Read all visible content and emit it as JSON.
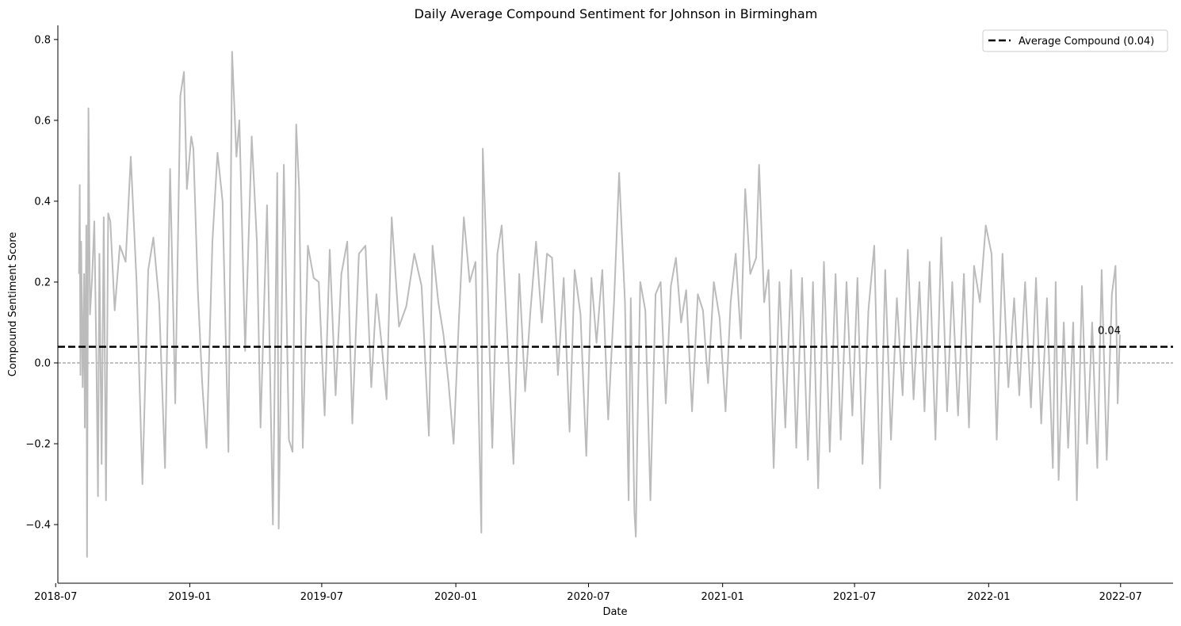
{
  "chart_data": {
    "type": "line",
    "title": "Daily Average Compound Sentiment for Johnson in Birmingham",
    "xlabel": "Date",
    "ylabel": "Compound Sentiment Score",
    "x_range": [
      "2018-08-02",
      "2022-06-30"
    ],
    "xlim": [
      "2018-07-04",
      "2022-09-11"
    ],
    "ylim": [
      -0.545,
      0.835
    ],
    "x_ticks": [
      "2018-07",
      "2019-01",
      "2019-07",
      "2020-01",
      "2020-07",
      "2021-01",
      "2021-07",
      "2022-01",
      "2022-07"
    ],
    "y_ticks": [
      -0.4,
      -0.2,
      0.0,
      0.2,
      0.4,
      0.6,
      0.8
    ],
    "y_tick_labels": [
      "−0.4",
      "−0.2",
      "0.0",
      "0.2",
      "0.4",
      "0.6",
      "0.8"
    ],
    "series": [
      {
        "color": "#bbbbbb",
        "points": [
          [
            "2018-08-02",
            0.22
          ],
          [
            "2018-08-03",
            0.44
          ],
          [
            "2018-08-04",
            -0.03
          ],
          [
            "2018-08-05",
            0.3
          ],
          [
            "2018-08-07",
            -0.06
          ],
          [
            "2018-08-09",
            0.22
          ],
          [
            "2018-08-10",
            -0.16
          ],
          [
            "2018-08-12",
            0.34
          ],
          [
            "2018-08-13",
            -0.48
          ],
          [
            "2018-08-15",
            0.63
          ],
          [
            "2018-08-17",
            0.12
          ],
          [
            "2018-08-20",
            0.21
          ],
          [
            "2018-08-23",
            0.35
          ],
          [
            "2018-08-26",
            0.0
          ],
          [
            "2018-08-28",
            -0.33
          ],
          [
            "2018-08-30",
            0.27
          ],
          [
            "2018-09-02",
            -0.25
          ],
          [
            "2018-09-05",
            0.36
          ],
          [
            "2018-09-08",
            -0.34
          ],
          [
            "2018-09-11",
            0.37
          ],
          [
            "2018-09-14",
            0.35
          ],
          [
            "2018-09-20",
            0.13
          ],
          [
            "2018-09-27",
            0.29
          ],
          [
            "2018-10-05",
            0.25
          ],
          [
            "2018-10-12",
            0.51
          ],
          [
            "2018-10-20",
            0.2
          ],
          [
            "2018-10-28",
            -0.3
          ],
          [
            "2018-11-05",
            0.23
          ],
          [
            "2018-11-12",
            0.31
          ],
          [
            "2018-11-20",
            0.15
          ],
          [
            "2018-11-28",
            -0.26
          ],
          [
            "2018-12-05",
            0.48
          ],
          [
            "2018-12-12",
            -0.1
          ],
          [
            "2018-12-19",
            0.66
          ],
          [
            "2018-12-24",
            0.72
          ],
          [
            "2018-12-28",
            0.43
          ],
          [
            "2019-01-03",
            0.56
          ],
          [
            "2019-01-06",
            0.53
          ],
          [
            "2019-01-12",
            0.18
          ],
          [
            "2019-01-18",
            -0.05
          ],
          [
            "2019-01-24",
            -0.21
          ],
          [
            "2019-02-01",
            0.3
          ],
          [
            "2019-02-08",
            0.52
          ],
          [
            "2019-02-15",
            0.4
          ],
          [
            "2019-02-23",
            -0.22
          ],
          [
            "2019-02-28",
            0.77
          ],
          [
            "2019-03-06",
            0.51
          ],
          [
            "2019-03-10",
            0.6
          ],
          [
            "2019-03-18",
            0.03
          ],
          [
            "2019-03-27",
            0.56
          ],
          [
            "2019-04-03",
            0.3
          ],
          [
            "2019-04-08",
            -0.16
          ],
          [
            "2019-04-17",
            0.39
          ],
          [
            "2019-04-25",
            -0.4
          ],
          [
            "2019-05-01",
            0.47
          ],
          [
            "2019-05-03",
            -0.41
          ],
          [
            "2019-05-10",
            0.49
          ],
          [
            "2019-05-17",
            -0.19
          ],
          [
            "2019-05-22",
            -0.22
          ],
          [
            "2019-05-27",
            0.59
          ],
          [
            "2019-05-31",
            0.43
          ],
          [
            "2019-06-05",
            -0.21
          ],
          [
            "2019-06-12",
            0.29
          ],
          [
            "2019-06-20",
            0.21
          ],
          [
            "2019-06-27",
            0.2
          ],
          [
            "2019-07-05",
            -0.13
          ],
          [
            "2019-07-12",
            0.28
          ],
          [
            "2019-07-20",
            -0.08
          ],
          [
            "2019-07-28",
            0.22
          ],
          [
            "2019-08-05",
            0.3
          ],
          [
            "2019-08-12",
            -0.15
          ],
          [
            "2019-08-21",
            0.27
          ],
          [
            "2019-08-30",
            0.29
          ],
          [
            "2019-09-07",
            -0.06
          ],
          [
            "2019-09-14",
            0.17
          ],
          [
            "2019-09-21",
            0.05
          ],
          [
            "2019-09-28",
            -0.09
          ],
          [
            "2019-10-05",
            0.36
          ],
          [
            "2019-10-15",
            0.09
          ],
          [
            "2019-10-25",
            0.14
          ],
          [
            "2019-11-05",
            0.27
          ],
          [
            "2019-11-15",
            0.19
          ],
          [
            "2019-11-25",
            -0.18
          ],
          [
            "2019-11-30",
            0.29
          ],
          [
            "2019-12-08",
            0.15
          ],
          [
            "2019-12-15",
            0.07
          ],
          [
            "2019-12-22",
            -0.05
          ],
          [
            "2019-12-29",
            -0.2
          ],
          [
            "2020-01-05",
            0.1
          ],
          [
            "2020-01-12",
            0.36
          ],
          [
            "2020-01-20",
            0.2
          ],
          [
            "2020-01-28",
            0.25
          ],
          [
            "2020-02-05",
            -0.42
          ],
          [
            "2020-02-07",
            0.53
          ],
          [
            "2020-02-14",
            0.17
          ],
          [
            "2020-02-20",
            -0.21
          ],
          [
            "2020-02-27",
            0.27
          ],
          [
            "2020-03-04",
            0.34
          ],
          [
            "2020-03-12",
            0.05
          ],
          [
            "2020-03-20",
            -0.25
          ],
          [
            "2020-03-28",
            0.22
          ],
          [
            "2020-04-05",
            -0.07
          ],
          [
            "2020-04-12",
            0.12
          ],
          [
            "2020-04-20",
            0.3
          ],
          [
            "2020-04-28",
            0.1
          ],
          [
            "2020-05-05",
            0.27
          ],
          [
            "2020-05-12",
            0.26
          ],
          [
            "2020-05-20",
            -0.03
          ],
          [
            "2020-05-28",
            0.21
          ],
          [
            "2020-06-05",
            -0.17
          ],
          [
            "2020-06-12",
            0.23
          ],
          [
            "2020-06-20",
            0.12
          ],
          [
            "2020-06-28",
            -0.23
          ],
          [
            "2020-07-05",
            0.21
          ],
          [
            "2020-07-12",
            0.05
          ],
          [
            "2020-07-20",
            0.23
          ],
          [
            "2020-07-28",
            -0.14
          ],
          [
            "2020-08-05",
            0.15
          ],
          [
            "2020-08-12",
            0.47
          ],
          [
            "2020-08-20",
            0.15
          ],
          [
            "2020-08-25",
            -0.34
          ],
          [
            "2020-08-28",
            0.16
          ],
          [
            "2020-09-02",
            -0.37
          ],
          [
            "2020-09-04",
            -0.43
          ],
          [
            "2020-09-06",
            -0.18
          ],
          [
            "2020-09-10",
            0.2
          ],
          [
            "2020-09-17",
            0.13
          ],
          [
            "2020-09-24",
            -0.34
          ],
          [
            "2020-10-01",
            0.17
          ],
          [
            "2020-10-08",
            0.2
          ],
          [
            "2020-10-15",
            -0.1
          ],
          [
            "2020-10-22",
            0.19
          ],
          [
            "2020-10-29",
            0.26
          ],
          [
            "2020-11-05",
            0.1
          ],
          [
            "2020-11-12",
            0.18
          ],
          [
            "2020-11-20",
            -0.12
          ],
          [
            "2020-11-28",
            0.17
          ],
          [
            "2020-12-05",
            0.13
          ],
          [
            "2020-12-12",
            -0.05
          ],
          [
            "2020-12-20",
            0.2
          ],
          [
            "2020-12-28",
            0.11
          ],
          [
            "2021-01-05",
            -0.12
          ],
          [
            "2021-01-12",
            0.15
          ],
          [
            "2021-01-19",
            0.27
          ],
          [
            "2021-01-26",
            0.06
          ],
          [
            "2021-02-01",
            0.43
          ],
          [
            "2021-02-08",
            0.22
          ],
          [
            "2021-02-16",
            0.26
          ],
          [
            "2021-02-20",
            0.49
          ],
          [
            "2021-02-27",
            0.15
          ],
          [
            "2021-03-05",
            0.23
          ],
          [
            "2021-03-12",
            -0.26
          ],
          [
            "2021-03-20",
            0.2
          ],
          [
            "2021-03-28",
            -0.16
          ],
          [
            "2021-04-05",
            0.23
          ],
          [
            "2021-04-12",
            -0.21
          ],
          [
            "2021-04-20",
            0.21
          ],
          [
            "2021-04-28",
            -0.24
          ],
          [
            "2021-05-05",
            0.2
          ],
          [
            "2021-05-12",
            -0.31
          ],
          [
            "2021-05-20",
            0.25
          ],
          [
            "2021-05-28",
            -0.22
          ],
          [
            "2021-06-05",
            0.22
          ],
          [
            "2021-06-12",
            -0.19
          ],
          [
            "2021-06-20",
            0.2
          ],
          [
            "2021-06-28",
            -0.13
          ],
          [
            "2021-07-05",
            0.21
          ],
          [
            "2021-07-12",
            -0.25
          ],
          [
            "2021-07-20",
            0.13
          ],
          [
            "2021-07-28",
            0.29
          ],
          [
            "2021-08-05",
            -0.31
          ],
          [
            "2021-08-12",
            0.23
          ],
          [
            "2021-08-20",
            -0.19
          ],
          [
            "2021-08-28",
            0.16
          ],
          [
            "2021-09-05",
            -0.08
          ],
          [
            "2021-09-12",
            0.28
          ],
          [
            "2021-09-20",
            -0.09
          ],
          [
            "2021-09-28",
            0.2
          ],
          [
            "2021-10-05",
            -0.12
          ],
          [
            "2021-10-12",
            0.25
          ],
          [
            "2021-10-20",
            -0.19
          ],
          [
            "2021-10-28",
            0.31
          ],
          [
            "2021-11-05",
            -0.12
          ],
          [
            "2021-11-12",
            0.2
          ],
          [
            "2021-11-20",
            -0.13
          ],
          [
            "2021-11-28",
            0.22
          ],
          [
            "2021-12-05",
            -0.16
          ],
          [
            "2021-12-12",
            0.24
          ],
          [
            "2021-12-20",
            0.15
          ],
          [
            "2021-12-28",
            0.34
          ],
          [
            "2022-01-05",
            0.27
          ],
          [
            "2022-01-12",
            -0.19
          ],
          [
            "2022-01-20",
            0.27
          ],
          [
            "2022-01-28",
            -0.06
          ],
          [
            "2022-02-05",
            0.16
          ],
          [
            "2022-02-12",
            -0.08
          ],
          [
            "2022-02-20",
            0.2
          ],
          [
            "2022-02-28",
            -0.11
          ],
          [
            "2022-03-07",
            0.21
          ],
          [
            "2022-03-14",
            -0.15
          ],
          [
            "2022-03-22",
            0.16
          ],
          [
            "2022-03-30",
            -0.26
          ],
          [
            "2022-04-03",
            0.2
          ],
          [
            "2022-04-07",
            -0.29
          ],
          [
            "2022-04-14",
            0.1
          ],
          [
            "2022-04-20",
            -0.21
          ],
          [
            "2022-04-27",
            0.1
          ],
          [
            "2022-05-02",
            -0.34
          ],
          [
            "2022-05-09",
            0.19
          ],
          [
            "2022-05-16",
            -0.2
          ],
          [
            "2022-05-23",
            0.1
          ],
          [
            "2022-05-30",
            -0.26
          ],
          [
            "2022-06-05",
            0.23
          ],
          [
            "2022-06-12",
            -0.24
          ],
          [
            "2022-06-19",
            0.17
          ],
          [
            "2022-06-24",
            0.24
          ],
          [
            "2022-06-27",
            -0.1
          ],
          [
            "2022-06-30",
            0.07
          ]
        ]
      }
    ],
    "average_line": {
      "value": 0.04,
      "label": "Average Compound (0.04)",
      "annotation": "0.04",
      "style": "dashed",
      "color": "#000000"
    },
    "zero_line": {
      "value": 0.0,
      "style": "dashed",
      "color": "#808080"
    },
    "legend": {
      "placement": "top-right"
    },
    "grid": false
  }
}
